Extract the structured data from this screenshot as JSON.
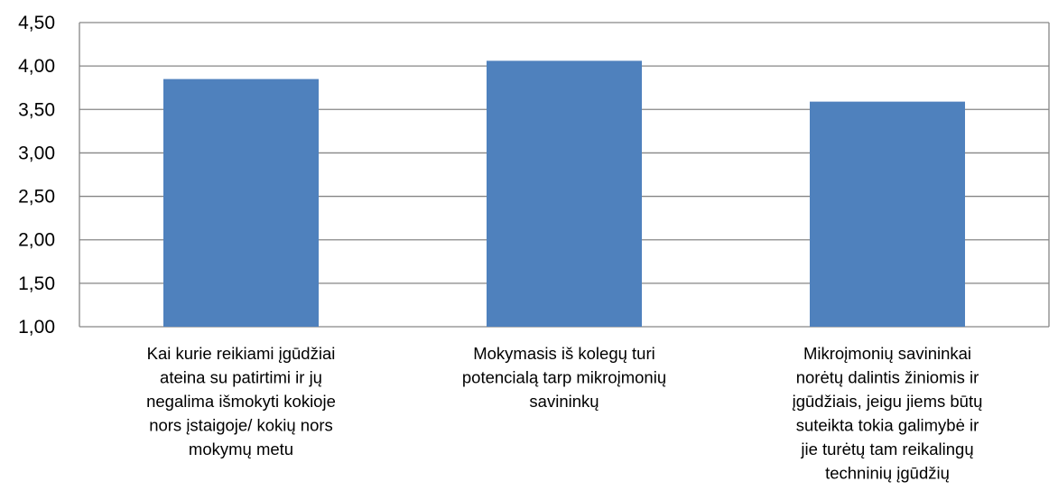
{
  "chart_data": {
    "type": "bar",
    "categories": [
      [
        "Kai kurie reikiami įgūdžiai",
        "ateina su patirtimi ir jų",
        "negalima išmokyti kokioje",
        "nors įstaigoje/ kokių nors",
        "mokymų metu"
      ],
      [
        "Mokymasis iš kolegų turi",
        "potencialą tarp mikroįmonių",
        "savininkų"
      ],
      [
        "Mikroįmonių savininkai",
        "norėtų dalintis žiniomis ir",
        "įgūdžiais, jeigu jiems būtų",
        "suteikta tokia galimybė ir",
        "jie turėtų tam reikalingų",
        "techninių įgūdžių"
      ]
    ],
    "values": [
      3.85,
      4.06,
      3.59
    ],
    "ylim": [
      1.0,
      4.5
    ],
    "yticks": [
      "1,00",
      "1,50",
      "2,00",
      "2,50",
      "3,00",
      "3,50",
      "4,00",
      "4,50"
    ],
    "grid": true,
    "title": "",
    "xlabel": "",
    "ylabel": ""
  },
  "colors": {
    "bar": "#4f81bd",
    "grid": "#868686",
    "axis": "#868686"
  }
}
